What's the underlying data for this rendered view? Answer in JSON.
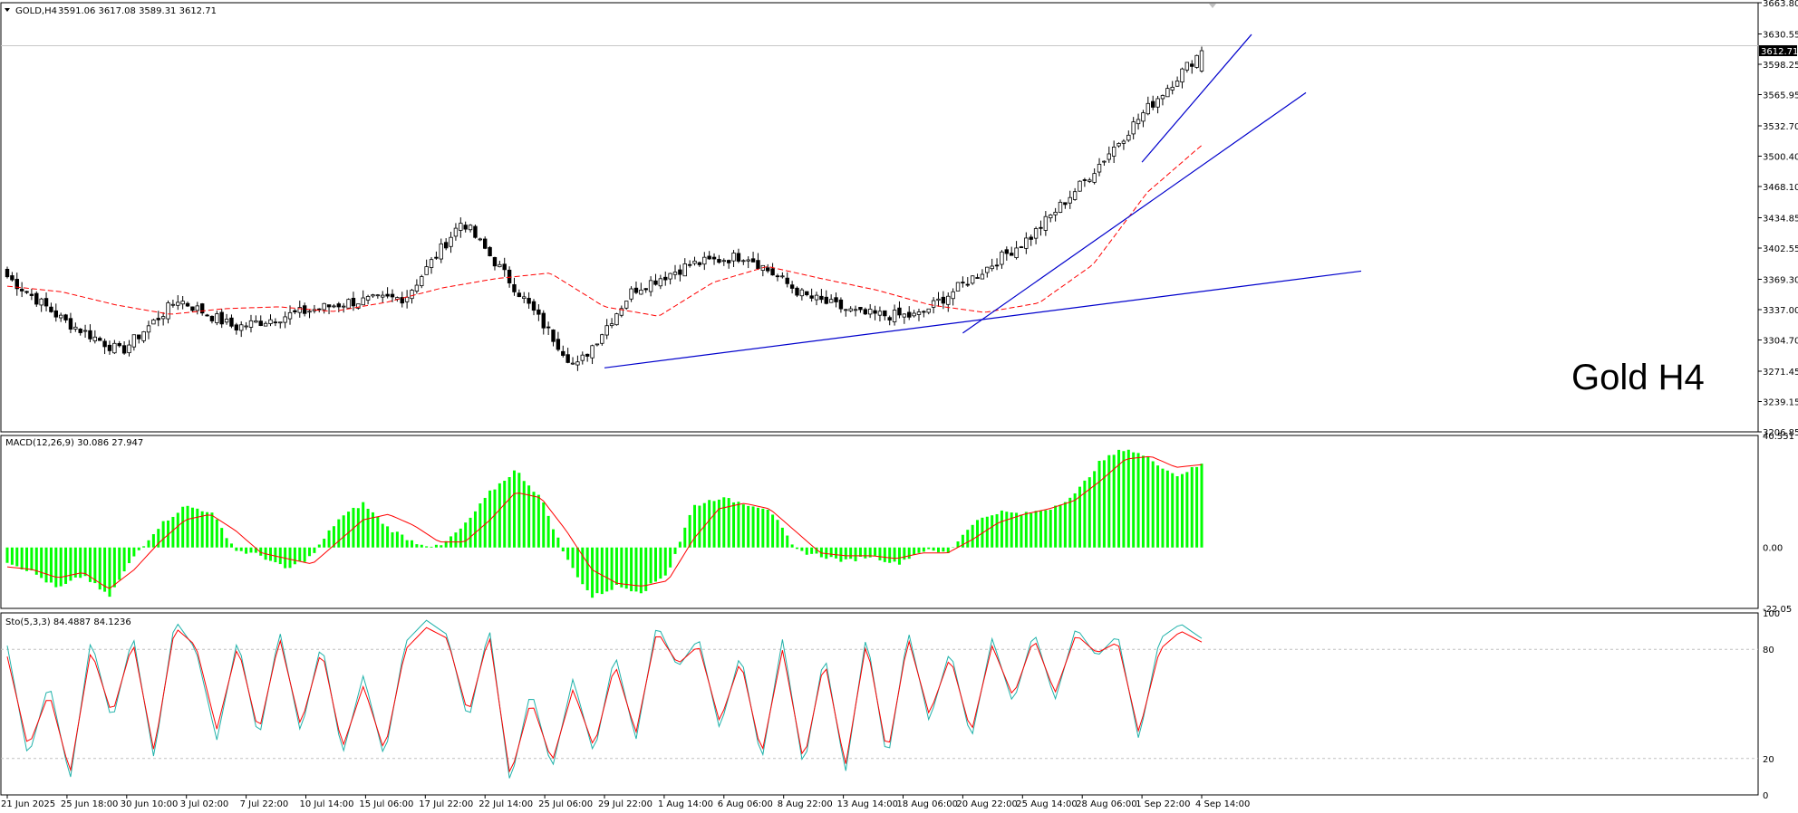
{
  "chart_data": {
    "type": "candlestick",
    "symbol_title": "GOLD,H4",
    "ohlc_header": "3591.06 3617.08 3589.31 3612.71",
    "watermark_label": "Gold H4",
    "current_price_label": "3612.71",
    "price_axis_ticks": [
      "3663.80",
      "3630.55",
      "3598.25",
      "3565.95",
      "3532.70",
      "3500.40",
      "3468.10",
      "3434.85",
      "3402.55",
      "3369.30",
      "3337.00",
      "3304.70",
      "3271.45",
      "3239.15",
      "3206.85"
    ],
    "price_range": [
      3206.85,
      3663.8
    ],
    "price_anchors": [
      {
        "label": "21 Jun 2025",
        "open": 3380,
        "close": 3372
      },
      {
        "label": "25 Jun 18:00",
        "close": 3325
      },
      {
        "label": "30 Jun 10:00",
        "close": 3292
      },
      {
        "label": "3 Jul 02:00",
        "close": 3348
      },
      {
        "label": "7 Jul 22:00",
        "close": 3318
      },
      {
        "label": "10 Jul 14:00",
        "close": 3332
      },
      {
        "label": "15 Jul 06:00",
        "close": 3345
      },
      {
        "label": "17 Jul 22:00",
        "close": 3350
      },
      {
        "label": "22 Jul 14:00",
        "close": 3432
      },
      {
        "label": "25 Jul 06:00",
        "close": 3355
      },
      {
        "label": "29 Jul 22:00",
        "close": 3275
      },
      {
        "label": "1 Aug 14:00",
        "close": 3358
      },
      {
        "label": "6 Aug 06:00",
        "close": 3385
      },
      {
        "label": "8 Aug 22:00",
        "close": 3395
      },
      {
        "label": "13 Aug 14:00",
        "close": 3352
      },
      {
        "label": "18 Aug 06:00",
        "close": 3332
      },
      {
        "label": "20 Aug 22:00",
        "close": 3330
      },
      {
        "label": "25 Aug 14:00",
        "close": 3372
      },
      {
        "label": "28 Aug 06:00",
        "close": 3415
      },
      {
        "label": "1 Sep 22:00",
        "close": 3478
      },
      {
        "label": "4 Sep 14:00",
        "close": 3548
      },
      {
        "label": "last",
        "open": 3591.06,
        "high": 3617.08,
        "low": 3589.31,
        "close": 3612.71
      }
    ],
    "moving_average_anchors": [
      3362,
      3356,
      3342,
      3332,
      3338,
      3340,
      3335,
      3345,
      3360,
      3370,
      3376,
      3340,
      3330,
      3366,
      3383,
      3370,
      3358,
      3342,
      3334,
      3344,
      3385,
      3462,
      3512
    ],
    "trendlines": [
      {
        "from": {
          "date": "29 Jul 22:00",
          "price": 3275
        },
        "to": {
          "date": "beyond 4 Sep 14:00",
          "price": 3378
        },
        "color": "#0000cc"
      },
      {
        "from": {
          "date": "20 Aug 22:00",
          "price": 3312
        },
        "to": {
          "date": "beyond 4 Sep 14:00",
          "price": 3568
        },
        "color": "#0000cc"
      },
      {
        "from": {
          "date": "1 Sep 22:00",
          "price": 3494
        },
        "to": {
          "date": "beyond 4 Sep 14:00",
          "price": 3630
        },
        "color": "#0000cc"
      }
    ],
    "macd": {
      "label": "MACD(12,26,9) 30.086 27.947",
      "axis_ticks": [
        "40.551",
        "0.00",
        "-22.05"
      ],
      "range": [
        -22.05,
        40.551
      ],
      "histogram_anchors": [
        -5,
        -9,
        -15,
        -10,
        -18,
        -3,
        8,
        15,
        13,
        -1,
        -3,
        -8,
        -3,
        10,
        16,
        7,
        2,
        0,
        8,
        20,
        28,
        18,
        -4,
        -18,
        -14,
        -16,
        -9,
        15,
        18,
        16,
        14,
        -1,
        -3,
        -5,
        -3,
        -6,
        -1,
        -2,
        9,
        13,
        12,
        14,
        19,
        31,
        36,
        32,
        26,
        30
      ],
      "signal_anchors": [
        -7,
        -8,
        -11,
        -9,
        -15,
        -8,
        2,
        10,
        12,
        6,
        -2,
        -4,
        -6,
        2,
        10,
        12,
        8,
        2,
        2,
        10,
        20,
        18,
        6,
        -8,
        -13,
        -14,
        -12,
        3,
        14,
        16,
        14,
        6,
        -2,
        -3,
        -3,
        -4,
        -2,
        -2,
        3,
        9,
        12,
        14,
        17,
        24,
        32,
        33,
        29,
        30
      ],
      "colors": {
        "histogram": "#00ff00",
        "signal": "#ff0000"
      }
    },
    "stochastic": {
      "label": "Sto(5,3,3) 84.4887 84.1236",
      "axis_ticks": [
        "100",
        "80",
        "20",
        "0"
      ],
      "range": [
        0,
        100
      ],
      "levels": [
        80,
        20
      ],
      "main_anchors": [
        82,
        20,
        62,
        8,
        86,
        40,
        88,
        20,
        96,
        80,
        30,
        86,
        30,
        90,
        34,
        84,
        22,
        66,
        20,
        84,
        96,
        88,
        40,
        92,
        6,
        58,
        14,
        64,
        22,
        78,
        30,
        94,
        70,
        86,
        36,
        78,
        18,
        86,
        14,
        78,
        12,
        88,
        18,
        90,
        40,
        80,
        30,
        86,
        50,
        90,
        52,
        92,
        76,
        88,
        30,
        86,
        94,
        86
      ],
      "signal_anchors": [
        76,
        26,
        56,
        12,
        80,
        44,
        84,
        24,
        92,
        82,
        36,
        82,
        34,
        86,
        38,
        80,
        26,
        60,
        24,
        80,
        92,
        86,
        44,
        88,
        10,
        52,
        18,
        58,
        26,
        72,
        34,
        90,
        72,
        82,
        40,
        74,
        22,
        80,
        18,
        74,
        16,
        84,
        22,
        86,
        44,
        76,
        34,
        82,
        54,
        86,
        56,
        88,
        78,
        84,
        34,
        80,
        90,
        84
      ],
      "colors": {
        "main": "#20b2aa",
        "signal": "#ff0000"
      }
    },
    "time_axis_labels": [
      "21 Jun 2025",
      "25 Jun 18:00",
      "30 Jun 10:00",
      "3 Jul 02:00",
      "7 Jul 22:00",
      "10 Jul 14:00",
      "15 Jul 06:00",
      "17 Jul 22:00",
      "22 Jul 14:00",
      "25 Jul 06:00",
      "29 Jul 22:00",
      "1 Aug 14:00",
      "6 Aug 06:00",
      "8 Aug 22:00",
      "13 Aug 14:00",
      "18 Aug 06:00",
      "20 Aug 22:00",
      "25 Aug 14:00",
      "28 Aug 06:00",
      "1 Sep 22:00",
      "4 Sep 14:00"
    ],
    "colors": {
      "candle": "#000000",
      "moving_average": "#ff0000",
      "trendline": "#0000cc",
      "grid": "#c0c0c0"
    },
    "legend": "none",
    "grid": false
  }
}
